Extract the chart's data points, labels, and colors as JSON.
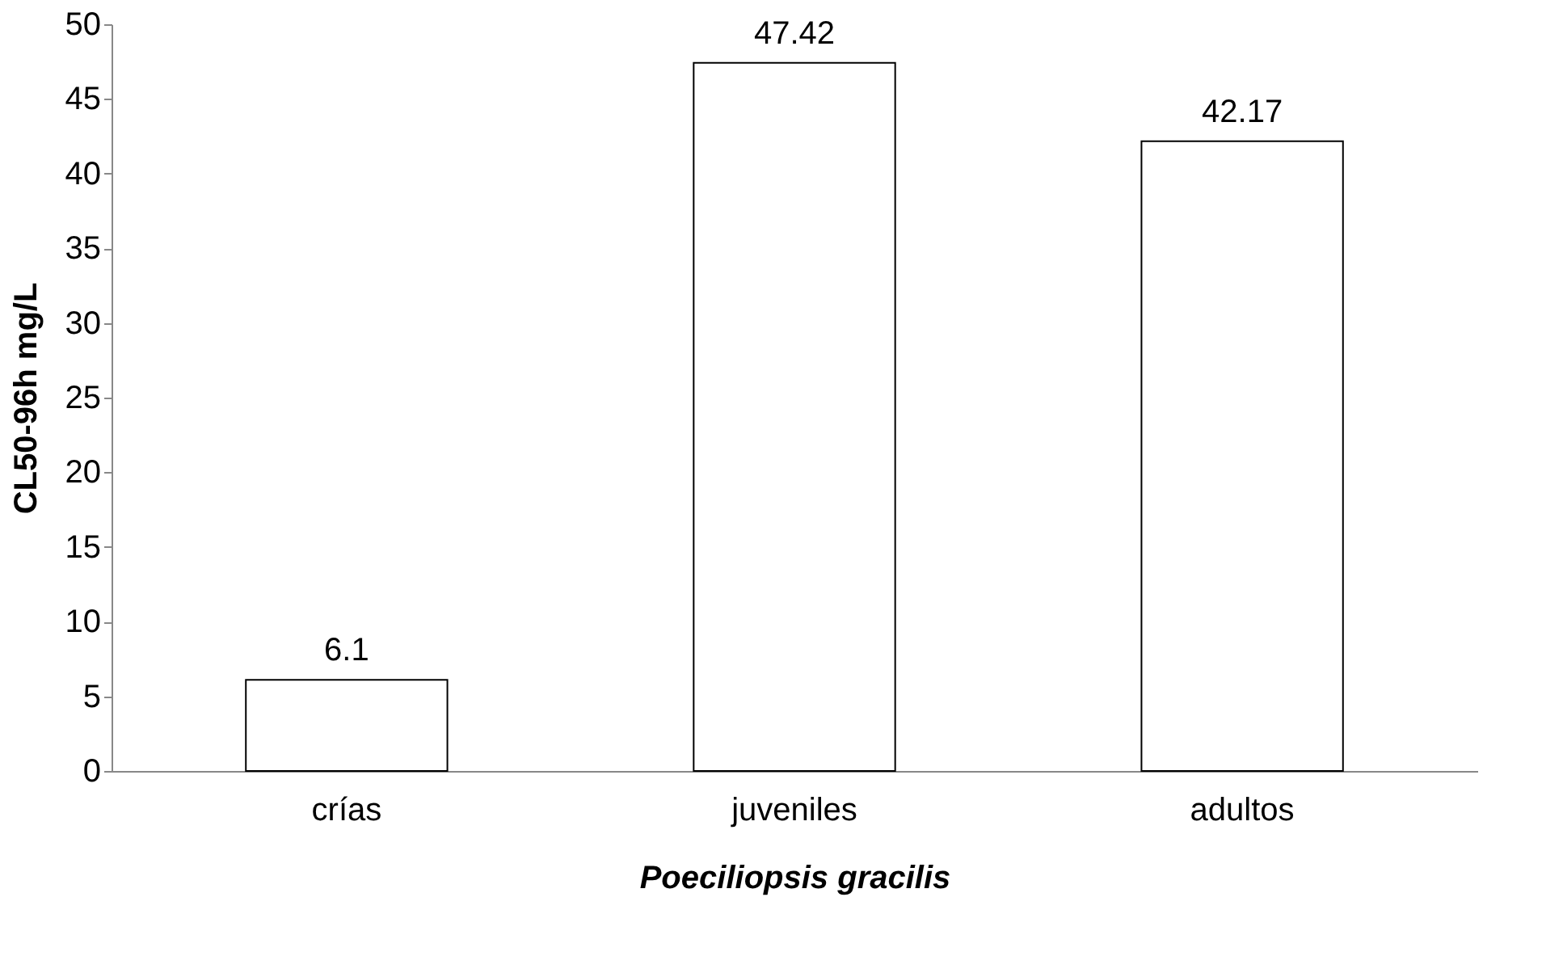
{
  "chart_data": {
    "type": "bar",
    "xlabel": "Poeciliopsis gracilis",
    "ylabel": "CL50-96h mg/L",
    "categories": [
      "crías",
      "juveniles",
      "adultos"
    ],
    "values": [
      6.1,
      47.42,
      42.17
    ],
    "color": "#ffffff",
    "ylim": [
      0,
      50
    ],
    "yticks": [
      0,
      5,
      10,
      15,
      20,
      25,
      30,
      35,
      40,
      45,
      50
    ],
    "data_labels": true,
    "grid": false
  }
}
